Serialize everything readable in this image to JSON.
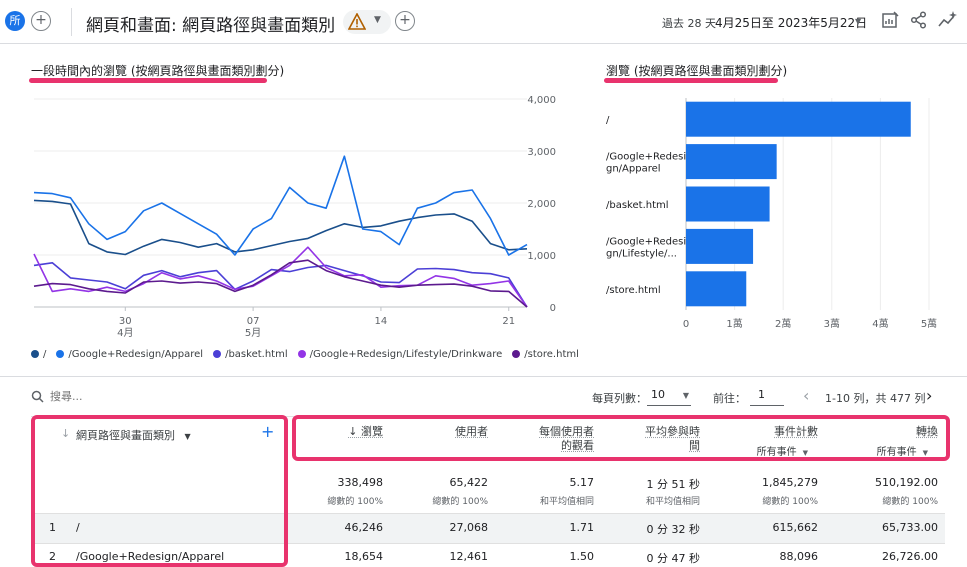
{
  "header": {
    "badge": "所",
    "add_comparison": "+",
    "title": "網頁和畫面: 網頁路徑與畫面類別",
    "add_filter": "+",
    "date_label": "過去 28 天",
    "date_range": "4月25日至 2023年5月22日",
    "icons": [
      "customize-report-icon",
      "share-icon",
      "insights-icon"
    ]
  },
  "line_card": {
    "title": "一段時間內的瀏覽 (按網頁路徑與畫面類別劃分)",
    "legend": [
      {
        "name": "/",
        "color": "#1a4f8b"
      },
      {
        "name": "/Google+Redesign/Apparel",
        "color": "#1a73e8"
      },
      {
        "name": "/basket.html",
        "color": "#4b3fd6"
      },
      {
        "name": "/Google+Redesign/Lifestyle/Drinkware",
        "color": "#9334e6"
      },
      {
        "name": "/store.html",
        "color": "#5c1a8e"
      }
    ]
  },
  "bar_card": {
    "title": "瀏覽 (按網頁路徑與畫面類別劃分)"
  },
  "chart_data": [
    {
      "type": "line",
      "x_ticks": [
        {
          "day": 30,
          "month": "4月",
          "index": 5
        },
        {
          "day": "07",
          "month": "5月",
          "index": 12
        },
        {
          "day": 14,
          "month": "",
          "index": 19
        },
        {
          "day": 21,
          "month": "",
          "index": 26
        }
      ],
      "ylim": [
        0,
        4000
      ],
      "y_ticks": [
        "0",
        "1,000",
        "2,000",
        "3,000",
        "4,000"
      ],
      "series": [
        {
          "name": "/",
          "color": "#1a4f8b",
          "values": [
            2050,
            2030,
            1980,
            1220,
            1060,
            1010,
            1170,
            1300,
            1240,
            1150,
            1220,
            1060,
            1100,
            1180,
            1260,
            1320,
            1470,
            1600,
            1530,
            1560,
            1650,
            1720,
            1770,
            1790,
            1650,
            1220,
            1100,
            1120
          ]
        },
        {
          "name": "/Google+Redesign/Apparel",
          "color": "#1a73e8",
          "values": [
            2200,
            2180,
            2100,
            1600,
            1300,
            1450,
            1850,
            2000,
            1800,
            1600,
            1400,
            1000,
            1500,
            1700,
            2300,
            2000,
            1900,
            2900,
            1500,
            1450,
            1200,
            1900,
            2000,
            2200,
            2250,
            1700,
            1000,
            1200
          ]
        },
        {
          "name": "/basket.html",
          "color": "#4b3fd6",
          "values": [
            800,
            850,
            560,
            520,
            480,
            350,
            610,
            700,
            580,
            660,
            700,
            340,
            500,
            720,
            680,
            760,
            800,
            700,
            600,
            480,
            470,
            730,
            740,
            720,
            660,
            640,
            560,
            0
          ]
        },
        {
          "name": "/Google+Redesign/Lifestyle/Drinkware",
          "color": "#9334e6",
          "values": [
            1020,
            300,
            350,
            300,
            380,
            300,
            450,
            660,
            540,
            600,
            500,
            340,
            400,
            600,
            800,
            1150,
            760,
            600,
            620,
            380,
            410,
            420,
            600,
            550,
            420,
            450,
            500,
            0
          ]
        },
        {
          "name": "/store.html",
          "color": "#5c1a8e",
          "values": [
            400,
            450,
            430,
            350,
            300,
            270,
            480,
            500,
            460,
            480,
            450,
            300,
            420,
            620,
            850,
            900,
            700,
            580,
            500,
            420,
            380,
            420,
            430,
            440,
            400,
            310,
            300,
            0
          ]
        }
      ]
    },
    {
      "type": "bar",
      "orientation": "horizontal",
      "categories": [
        "/",
        "/Google+Redesign/Apparel",
        "/basket.html",
        "/Google+Redesign/Lifestyle/Drinkware",
        "/store.html"
      ],
      "category_labels": [
        [
          "/"
        ],
        [
          "/Google+Redesi",
          "gn/Apparel"
        ],
        [
          "/basket.html"
        ],
        [
          "/Google+Redesi",
          "gn/Lifestyle/..."
        ],
        [
          "/store.html"
        ]
      ],
      "values": [
        46246,
        18654,
        17200,
        13800,
        12400
      ],
      "xlim": [
        0,
        50000
      ],
      "x_ticks": [
        "0",
        "1萬",
        "2萬",
        "3萬",
        "4萬",
        "5萬"
      ],
      "color": "#1a73e8"
    }
  ],
  "table": {
    "search_placeholder": "搜尋...",
    "rows_per_page_label": "每頁列數：",
    "rows_per_page_value": "10",
    "goto_label": "前往：",
    "goto_value": "1",
    "pagination": "1-10 列，共 477 列",
    "dimension_header": "網頁路徑與畫面類別",
    "columns": [
      {
        "label1": "↓ 瀏覽",
        "label2": "",
        "sub": "",
        "total": "338,498",
        "total_sub": "總數的 100%"
      },
      {
        "label1": "使用者",
        "label2": "",
        "sub": "",
        "total": "65,422",
        "total_sub": "總數的 100%"
      },
      {
        "label1": "每個使用者",
        "label2": "的觀看",
        "sub": "",
        "total": "5.17",
        "total_sub": "和平均值相同"
      },
      {
        "label1": "平均參與時",
        "label2": "間",
        "sub": "",
        "total": "1 分 51 秒",
        "total_sub": "和平均值相同"
      },
      {
        "label1": "事件計數",
        "label2": "",
        "sub": "所有事件",
        "total": "1,845,279",
        "total_sub": "總數的 100%"
      },
      {
        "label1": "轉換",
        "label2": "",
        "sub": "所有事件",
        "total": "510,192.00",
        "total_sub": "總數的 100%"
      }
    ],
    "rows": [
      {
        "rank": "1",
        "dim": "/",
        "values": [
          "46,246",
          "27,068",
          "1.71",
          "0 分 32 秒",
          "615,662",
          "65,733.00"
        ]
      },
      {
        "rank": "2",
        "dim": "/Google+Redesign/Apparel",
        "values": [
          "18,654",
          "12,461",
          "1.50",
          "0 分 47 秒",
          "88,096",
          "26,726.00"
        ]
      }
    ]
  }
}
